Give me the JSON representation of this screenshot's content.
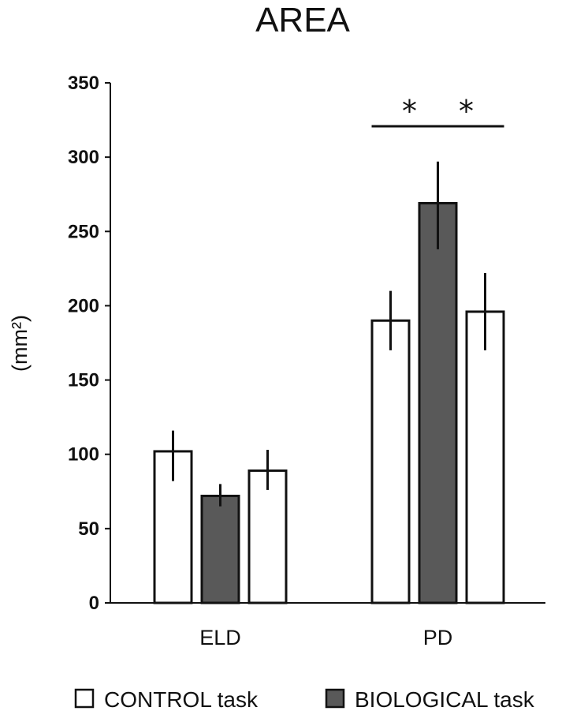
{
  "chart_data": {
    "type": "bar",
    "title": "AREA",
    "xlabel": "",
    "ylabel": "(mm²)",
    "ylim": [
      0,
      350
    ],
    "yticks": [
      0,
      50,
      100,
      150,
      200,
      250,
      300,
      350
    ],
    "grid": false,
    "legend_position": "bottom",
    "legend": [
      {
        "label": "CONTROL task",
        "color": "#ffffff"
      },
      {
        "label": "BIOLOGICAL task",
        "color": "#595959"
      }
    ],
    "groups": [
      {
        "name": "ELD",
        "bars": [
          {
            "series": "CONTROL task",
            "value": 102,
            "err_low": 82,
            "err_high": 116,
            "color": "#ffffff"
          },
          {
            "series": "BIOLOGICAL task",
            "value": 72,
            "err_low": 65,
            "err_high": 80,
            "color": "#595959"
          },
          {
            "series": "CONTROL task",
            "value": 89,
            "err_low": 76,
            "err_high": 103,
            "color": "#ffffff"
          }
        ]
      },
      {
        "name": "PD",
        "bars": [
          {
            "series": "CONTROL task",
            "value": 190,
            "err_low": 170,
            "err_high": 210,
            "color": "#ffffff"
          },
          {
            "series": "BIOLOGICAL task",
            "value": 269,
            "err_low": 238,
            "err_high": 297,
            "color": "#595959"
          },
          {
            "series": "CONTROL task",
            "value": 196,
            "err_low": 170,
            "err_high": 222,
            "color": "#ffffff"
          }
        ]
      }
    ],
    "annotations": [
      {
        "text": "*",
        "group": "PD",
        "from_bar": 0,
        "to_bar": 1
      },
      {
        "text": "*",
        "group": "PD",
        "from_bar": 1,
        "to_bar": 2
      }
    ]
  }
}
